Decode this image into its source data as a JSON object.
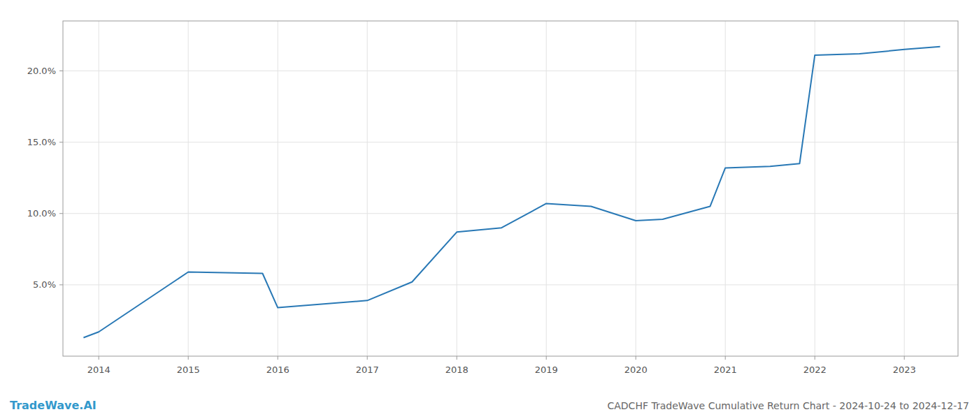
{
  "chart_data": {
    "type": "line",
    "title": "CADCHF TradeWave Cumulative Return Chart - 2024-10-24 to 2024-12-17",
    "annotations": [
      "TradeWave.AI"
    ],
    "x": [
      2013.83,
      2014.0,
      2015.0,
      2015.83,
      2016.0,
      2017.0,
      2017.5,
      2018.0,
      2018.5,
      2019.0,
      2019.5,
      2020.0,
      2020.3,
      2020.83,
      2021.0,
      2021.5,
      2021.83,
      2022.0,
      2022.5,
      2023.0,
      2023.4
    ],
    "values": [
      1.3,
      1.7,
      5.9,
      5.8,
      3.4,
      3.9,
      5.2,
      8.7,
      9.0,
      10.7,
      10.5,
      9.5,
      9.6,
      10.5,
      13.2,
      13.3,
      13.5,
      21.1,
      21.2,
      21.5,
      21.7
    ],
    "color": "#2878b5",
    "xlim": [
      2013.6,
      2023.6
    ],
    "ylim": [
      0,
      23.5
    ],
    "xticks": [
      2014,
      2015,
      2016,
      2017,
      2018,
      2019,
      2020,
      2021,
      2022,
      2023
    ],
    "yticks": [
      {
        "value": 5.0,
        "label": "5.0%"
      },
      {
        "value": 10.0,
        "label": "10.0%"
      },
      {
        "value": 15.0,
        "label": "15.0%"
      },
      {
        "value": 20.0,
        "label": "20.0%"
      }
    ],
    "grid": true
  }
}
